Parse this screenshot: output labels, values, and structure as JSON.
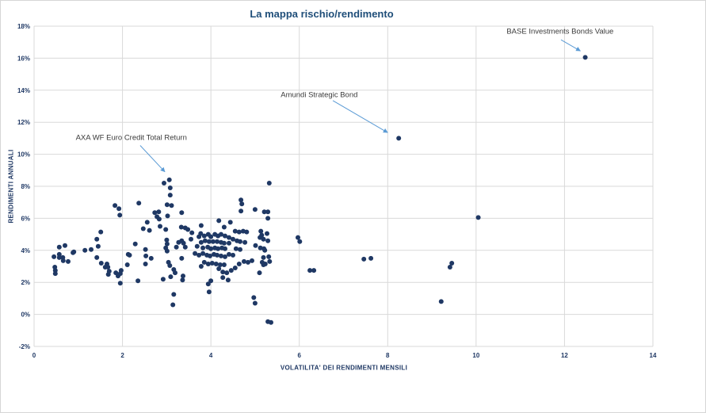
{
  "chart_data": {
    "type": "scatter",
    "title": "La mappa rischio/rendimento",
    "xlabel": "VOLATILITA' DEI RENDIMENTI MENSILI",
    "ylabel": "RENDIMENTI ANNUALI",
    "xlim": [
      0,
      14
    ],
    "ylim": [
      -2,
      18
    ],
    "x_ticks": [
      0,
      2,
      4,
      6,
      8,
      10,
      12,
      14
    ],
    "y_ticks": [
      18,
      16,
      14,
      12,
      10,
      8,
      6,
      4,
      2,
      0,
      -2
    ],
    "y_tick_suffix": "%",
    "grid": true,
    "legend": "none",
    "marker_color": "#1F3864",
    "grid_color": "#D9D9D9",
    "title_color": "#1F4E79",
    "axis_label_color": "#1F3864",
    "annotation_arrow_color": "#5B9BD5",
    "points": [
      [
        0.45,
        3.6
      ],
      [
        0.47,
        2.95
      ],
      [
        0.48,
        2.75
      ],
      [
        0.48,
        2.55
      ],
      [
        0.57,
        4.2
      ],
      [
        0.57,
        3.75
      ],
      [
        0.57,
        3.55
      ],
      [
        0.65,
        3.55
      ],
      [
        0.66,
        3.35
      ],
      [
        0.7,
        4.3
      ],
      [
        0.77,
        3.3
      ],
      [
        0.88,
        3.85
      ],
      [
        0.9,
        3.9
      ],
      [
        1.15,
        4.0
      ],
      [
        1.29,
        4.05
      ],
      [
        1.42,
        4.7
      ],
      [
        1.42,
        3.55
      ],
      [
        1.45,
        4.25
      ],
      [
        1.51,
        5.15
      ],
      [
        1.52,
        3.2
      ],
      [
        1.61,
        2.95
      ],
      [
        1.65,
        3.15
      ],
      [
        1.67,
        2.95
      ],
      [
        1.68,
        2.5
      ],
      [
        1.7,
        2.7
      ],
      [
        1.83,
        6.8
      ],
      [
        1.85,
        2.6
      ],
      [
        1.9,
        2.4
      ],
      [
        1.92,
        6.6
      ],
      [
        1.94,
        6.2
      ],
      [
        1.95,
        2.55
      ],
      [
        1.95,
        1.95
      ],
      [
        1.97,
        2.75
      ],
      [
        2.11,
        3.1
      ],
      [
        2.13,
        3.75
      ],
      [
        2.16,
        3.7
      ],
      [
        2.29,
        4.4
      ],
      [
        2.35,
        2.1
      ],
      [
        2.37,
        6.95
      ],
      [
        2.47,
        5.35
      ],
      [
        2.52,
        4.05
      ],
      [
        2.52,
        3.15
      ],
      [
        2.53,
        3.65
      ],
      [
        2.56,
        5.75
      ],
      [
        2.61,
        5.25
      ],
      [
        2.65,
        3.5
      ],
      [
        2.73,
        6.35
      ],
      [
        2.78,
        6.1
      ],
      [
        2.82,
        6.4
      ],
      [
        2.83,
        5.95
      ],
      [
        2.85,
        5.5
      ],
      [
        2.92,
        2.2
      ],
      [
        2.94,
        8.2
      ],
      [
        2.98,
        5.3
      ],
      [
        2.98,
        4.15
      ],
      [
        3.0,
        4.65
      ],
      [
        3.01,
        6.85
      ],
      [
        3.01,
        4.4
      ],
      [
        3.01,
        3.95
      ],
      [
        3.02,
        6.15
      ],
      [
        3.04,
        3.25
      ],
      [
        3.06,
        8.4
      ],
      [
        3.07,
        3.05
      ],
      [
        3.08,
        7.9
      ],
      [
        3.08,
        7.45
      ],
      [
        3.09,
        2.35
      ],
      [
        3.11,
        6.8
      ],
      [
        3.14,
        0.6
      ],
      [
        3.16,
        2.8
      ],
      [
        3.16,
        1.25
      ],
      [
        3.19,
        2.6
      ],
      [
        3.22,
        4.2
      ],
      [
        3.27,
        4.5
      ],
      [
        3.33,
        5.45
      ],
      [
        3.34,
        6.35
      ],
      [
        3.34,
        4.6
      ],
      [
        3.34,
        3.5
      ],
      [
        3.36,
        2.15
      ],
      [
        3.37,
        2.4
      ],
      [
        3.38,
        4.45
      ],
      [
        3.42,
        5.4
      ],
      [
        3.42,
        4.2
      ],
      [
        3.48,
        5.3
      ],
      [
        3.55,
        4.7
      ],
      [
        3.57,
        5.1
      ],
      [
        3.64,
        3.8
      ],
      [
        3.69,
        4.25
      ],
      [
        3.73,
        4.85
      ],
      [
        3.73,
        3.7
      ],
      [
        3.77,
        5.05
      ],
      [
        3.78,
        5.55
      ],
      [
        3.78,
        4.5
      ],
      [
        3.78,
        3.0
      ],
      [
        3.82,
        4.15
      ],
      [
        3.82,
        3.8
      ],
      [
        3.85,
        4.9
      ],
      [
        3.85,
        3.25
      ],
      [
        3.87,
        4.6
      ],
      [
        3.91,
        3.7
      ],
      [
        3.93,
        4.2
      ],
      [
        3.94,
        5.0
      ],
      [
        3.94,
        3.15
      ],
      [
        3.94,
        1.9
      ],
      [
        3.96,
        4.55
      ],
      [
        3.96,
        1.4
      ],
      [
        3.98,
        3.65
      ],
      [
        4.0,
        4.85
      ],
      [
        4.0,
        4.1
      ],
      [
        4.0,
        2.1
      ],
      [
        4.03,
        3.2
      ],
      [
        4.05,
        4.55
      ],
      [
        4.07,
        3.75
      ],
      [
        4.09,
        5.0
      ],
      [
        4.09,
        4.15
      ],
      [
        4.12,
        3.15
      ],
      [
        4.14,
        4.55
      ],
      [
        4.14,
        3.7
      ],
      [
        4.16,
        4.9
      ],
      [
        4.16,
        4.1
      ],
      [
        4.18,
        5.85
      ],
      [
        4.18,
        2.85
      ],
      [
        4.21,
        3.1
      ],
      [
        4.23,
        5.0
      ],
      [
        4.23,
        4.5
      ],
      [
        4.23,
        3.65
      ],
      [
        4.25,
        4.15
      ],
      [
        4.27,
        2.65
      ],
      [
        4.27,
        2.3
      ],
      [
        4.3,
        5.45
      ],
      [
        4.3,
        4.45
      ],
      [
        4.3,
        3.1
      ],
      [
        4.32,
        4.9
      ],
      [
        4.32,
        4.1
      ],
      [
        4.32,
        3.6
      ],
      [
        4.36,
        2.6
      ],
      [
        4.39,
        2.15
      ],
      [
        4.41,
        4.8
      ],
      [
        4.41,
        4.45
      ],
      [
        4.41,
        3.75
      ],
      [
        4.44,
        5.75
      ],
      [
        4.46,
        2.75
      ],
      [
        4.5,
        4.7
      ],
      [
        4.5,
        3.7
      ],
      [
        4.55,
        5.2
      ],
      [
        4.55,
        2.9
      ],
      [
        4.57,
        4.1
      ],
      [
        4.59,
        4.6
      ],
      [
        4.64,
        5.15
      ],
      [
        4.64,
        3.15
      ],
      [
        4.66,
        4.55
      ],
      [
        4.66,
        4.05
      ],
      [
        4.68,
        7.15
      ],
      [
        4.68,
        6.45
      ],
      [
        4.7,
        6.9
      ],
      [
        4.73,
        5.2
      ],
      [
        4.75,
        3.3
      ],
      [
        4.77,
        4.5
      ],
      [
        4.81,
        5.15
      ],
      [
        4.84,
        3.25
      ],
      [
        4.93,
        3.35
      ],
      [
        4.97,
        1.05
      ],
      [
        5.0,
        6.55
      ],
      [
        5.0,
        0.7
      ],
      [
        5.01,
        4.3
      ],
      [
        5.1,
        2.6
      ],
      [
        5.11,
        4.8
      ],
      [
        5.12,
        4.15
      ],
      [
        5.13,
        5.2
      ],
      [
        5.15,
        4.95
      ],
      [
        5.16,
        3.25
      ],
      [
        5.19,
        4.7
      ],
      [
        5.19,
        3.55
      ],
      [
        5.19,
        3.1
      ],
      [
        5.2,
        4.1
      ],
      [
        5.21,
        6.4
      ],
      [
        5.22,
        4.0
      ],
      [
        5.23,
        3.15
      ],
      [
        5.27,
        5.05
      ],
      [
        5.29,
        6.4
      ],
      [
        5.29,
        6.0
      ],
      [
        5.29,
        4.6
      ],
      [
        5.29,
        -0.45
      ],
      [
        5.31,
        3.6
      ],
      [
        5.32,
        8.2
      ],
      [
        5.33,
        3.3
      ],
      [
        5.36,
        -0.5
      ],
      [
        5.97,
        4.8
      ],
      [
        6.01,
        4.55
      ],
      [
        6.24,
        2.75
      ],
      [
        6.33,
        2.75
      ],
      [
        7.46,
        3.45
      ],
      [
        7.62,
        3.5
      ],
      [
        8.25,
        11.0
      ],
      [
        9.21,
        0.8
      ],
      [
        9.41,
        2.95
      ],
      [
        9.45,
        3.2
      ],
      [
        10.05,
        6.05
      ],
      [
        12.47,
        16.05
      ]
    ],
    "annotations": [
      {
        "label": "AXA WF Euro Credit Total Return",
        "point": [
          3.06,
          8.4
        ],
        "label_pos": [
          2.2,
          11.0
        ],
        "arrow": [
          [
            2.4,
            10.55
          ],
          [
            2.96,
            8.9
          ]
        ]
      },
      {
        "label": "Amundi Strategic Bond",
        "point": [
          8.25,
          11.0
        ],
        "label_pos": [
          6.45,
          13.7
        ],
        "arrow": [
          [
            6.76,
            13.35
          ],
          [
            8.0,
            11.35
          ]
        ]
      },
      {
        "label": "BASE Investments Bonds Value",
        "point": [
          12.47,
          16.05
        ],
        "label_pos": [
          11.9,
          17.65
        ],
        "arrow": [
          [
            11.92,
            17.15
          ],
          [
            12.36,
            16.45
          ]
        ]
      }
    ]
  }
}
